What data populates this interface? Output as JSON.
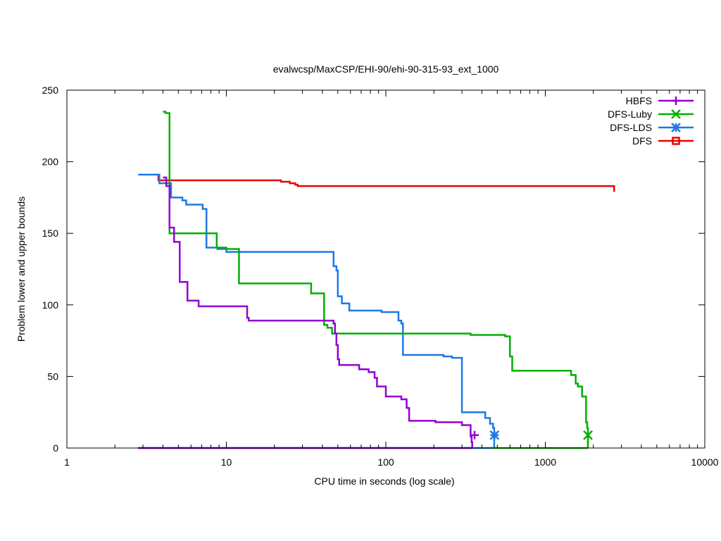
{
  "chart_data": {
    "type": "line",
    "title": "evalwcsp/MaxCSP/EHI-90/ehi-90-315-93_ext_1000",
    "xlabel": "CPU time in seconds (log scale)",
    "ylabel": "Problem lower and upper bounds",
    "x_scale": "log",
    "xlim": [
      1,
      10000
    ],
    "ylim": [
      0,
      250
    ],
    "x_ticks": [
      1,
      10,
      100,
      1000,
      10000
    ],
    "x_tick_labels": [
      "1",
      "10",
      "100",
      "1000",
      "10000"
    ],
    "y_ticks": [
      0,
      50,
      100,
      150,
      200,
      250
    ],
    "y_tick_labels": [
      "0",
      "50",
      "100",
      "150",
      "200",
      "250"
    ],
    "legend_position": "top-right",
    "grid": false,
    "series": [
      {
        "name": "HBFS",
        "color": "#9400d3",
        "marker": "plus",
        "marker_point": [
          360,
          9
        ],
        "upper": [
          [
            4.0,
            189
          ],
          [
            4.2,
            189
          ],
          [
            4.2,
            183
          ],
          [
            4.4,
            183
          ],
          [
            4.4,
            154
          ],
          [
            4.7,
            154
          ],
          [
            4.7,
            144
          ],
          [
            5.1,
            144
          ],
          [
            5.1,
            116
          ],
          [
            5.7,
            116
          ],
          [
            5.7,
            103
          ],
          [
            6.7,
            103
          ],
          [
            6.7,
            99
          ],
          [
            13.5,
            99
          ],
          [
            13.5,
            91
          ],
          [
            13.8,
            91
          ],
          [
            13.8,
            89
          ],
          [
            47,
            89
          ],
          [
            47,
            87
          ],
          [
            48,
            87
          ],
          [
            48,
            80
          ],
          [
            49,
            80
          ],
          [
            49,
            72
          ],
          [
            50,
            72
          ],
          [
            50,
            62
          ],
          [
            51,
            62
          ],
          [
            51,
            58
          ],
          [
            68,
            58
          ],
          [
            68,
            55
          ],
          [
            78,
            55
          ],
          [
            78,
            53
          ],
          [
            85,
            53
          ],
          [
            85,
            49
          ],
          [
            88,
            49
          ],
          [
            88,
            43
          ],
          [
            100,
            43
          ],
          [
            100,
            36
          ],
          [
            125,
            36
          ],
          [
            125,
            34
          ],
          [
            135,
            34
          ],
          [
            135,
            28
          ],
          [
            140,
            28
          ],
          [
            140,
            19
          ],
          [
            205,
            19
          ],
          [
            205,
            18
          ],
          [
            300,
            18
          ],
          [
            300,
            16
          ],
          [
            340,
            16
          ],
          [
            340,
            8
          ],
          [
            345,
            8
          ],
          [
            345,
            4
          ],
          [
            348,
            4
          ],
          [
            348,
            0
          ]
        ],
        "lower": [
          [
            2.8,
            0
          ],
          [
            348,
            0
          ]
        ]
      },
      {
        "name": "DFS-Luby",
        "color": "#00b000",
        "marker": "cross",
        "marker_point": [
          1850,
          9
        ],
        "upper": [
          [
            4.0,
            235
          ],
          [
            4.15,
            235
          ],
          [
            4.15,
            234
          ],
          [
            4.4,
            234
          ],
          [
            4.4,
            150
          ],
          [
            8.7,
            150
          ],
          [
            8.7,
            140
          ],
          [
            10,
            140
          ],
          [
            10,
            139
          ],
          [
            12,
            139
          ],
          [
            12,
            115
          ],
          [
            34,
            115
          ],
          [
            34,
            108
          ],
          [
            41,
            108
          ],
          [
            41,
            86
          ],
          [
            43,
            86
          ],
          [
            43,
            84
          ],
          [
            46,
            84
          ],
          [
            46,
            80
          ],
          [
            340,
            80
          ],
          [
            340,
            79
          ],
          [
            560,
            79
          ],
          [
            560,
            78
          ],
          [
            600,
            78
          ],
          [
            600,
            64
          ],
          [
            620,
            64
          ],
          [
            620,
            54
          ],
          [
            1450,
            54
          ],
          [
            1450,
            51
          ],
          [
            1550,
            51
          ],
          [
            1550,
            45
          ],
          [
            1600,
            45
          ],
          [
            1600,
            43
          ],
          [
            1700,
            43
          ],
          [
            1700,
            36
          ],
          [
            1800,
            36
          ],
          [
            1800,
            18
          ],
          [
            1830,
            18
          ],
          [
            1830,
            14
          ],
          [
            1850,
            14
          ],
          [
            1850,
            0
          ]
        ],
        "lower": [
          [
            460,
            0
          ],
          [
            1850,
            0
          ]
        ]
      },
      {
        "name": "DFS-LDS",
        "color": "#1e78e6",
        "marker": "star",
        "marker_point": [
          480,
          9
        ],
        "upper": [
          [
            2.8,
            191
          ],
          [
            3.8,
            191
          ],
          [
            3.8,
            185
          ],
          [
            4.5,
            185
          ],
          [
            4.5,
            175
          ],
          [
            5.3,
            175
          ],
          [
            5.3,
            173
          ],
          [
            5.6,
            173
          ],
          [
            5.6,
            170
          ],
          [
            7.1,
            170
          ],
          [
            7.1,
            167
          ],
          [
            7.5,
            167
          ],
          [
            7.5,
            140
          ],
          [
            8.8,
            140
          ],
          [
            8.8,
            139
          ],
          [
            10,
            139
          ],
          [
            10,
            137
          ],
          [
            47,
            137
          ],
          [
            47,
            127
          ],
          [
            49,
            127
          ],
          [
            49,
            124
          ],
          [
            50,
            124
          ],
          [
            50,
            106
          ],
          [
            53,
            106
          ],
          [
            53,
            101
          ],
          [
            59,
            101
          ],
          [
            59,
            96
          ],
          [
            94,
            96
          ],
          [
            94,
            95
          ],
          [
            120,
            95
          ],
          [
            120,
            89
          ],
          [
            125,
            89
          ],
          [
            125,
            87
          ],
          [
            128,
            87
          ],
          [
            128,
            65
          ],
          [
            230,
            65
          ],
          [
            230,
            64
          ],
          [
            260,
            64
          ],
          [
            260,
            63
          ],
          [
            300,
            63
          ],
          [
            300,
            25
          ],
          [
            420,
            25
          ],
          [
            420,
            21
          ],
          [
            450,
            21
          ],
          [
            450,
            17
          ],
          [
            470,
            17
          ],
          [
            470,
            14
          ],
          [
            478,
            14
          ],
          [
            478,
            0
          ]
        ],
        "lower": [
          [
            2.8,
            0
          ],
          [
            478,
            0
          ]
        ]
      },
      {
        "name": "DFS",
        "color": "#ee0000",
        "marker": "square",
        "marker_point": null,
        "upper": [
          [
            3.7,
            190
          ],
          [
            3.75,
            190
          ],
          [
            3.75,
            187
          ],
          [
            22,
            187
          ],
          [
            22,
            186
          ],
          [
            25,
            186
          ],
          [
            25,
            185
          ],
          [
            27,
            185
          ],
          [
            27,
            184
          ],
          [
            28,
            184
          ],
          [
            28,
            183
          ],
          [
            2700,
            183
          ],
          [
            2700,
            179
          ]
        ],
        "lower": []
      }
    ]
  }
}
